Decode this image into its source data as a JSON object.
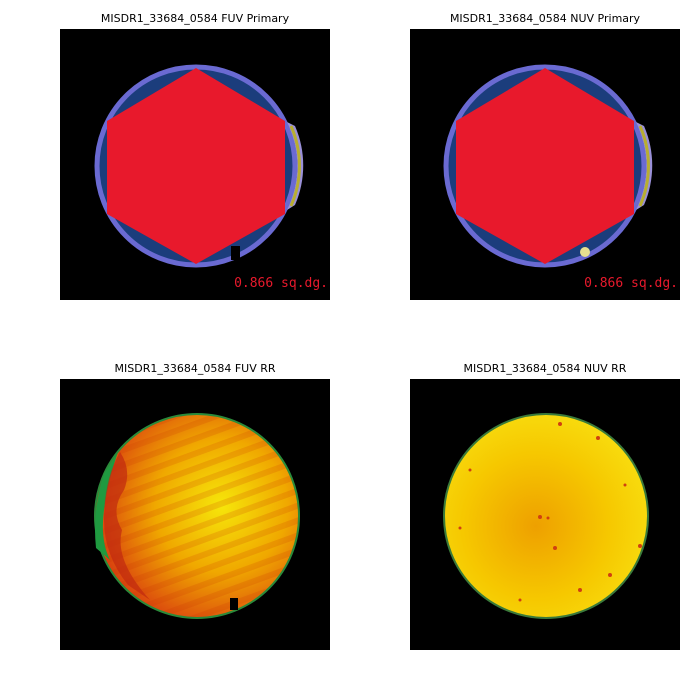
{
  "panels": [
    {
      "title": "MISDR1_33684_0584 FUV Primary",
      "area": "0.866 sq.dg."
    },
    {
      "title": "MISDR1_33684_0584 NUV Primary",
      "area": "0.866 sq.dg."
    },
    {
      "title": "MISDR1_33684_0584 FUV RR"
    },
    {
      "title": "MISDR1_33684_0584 NUV RR"
    }
  ]
}
